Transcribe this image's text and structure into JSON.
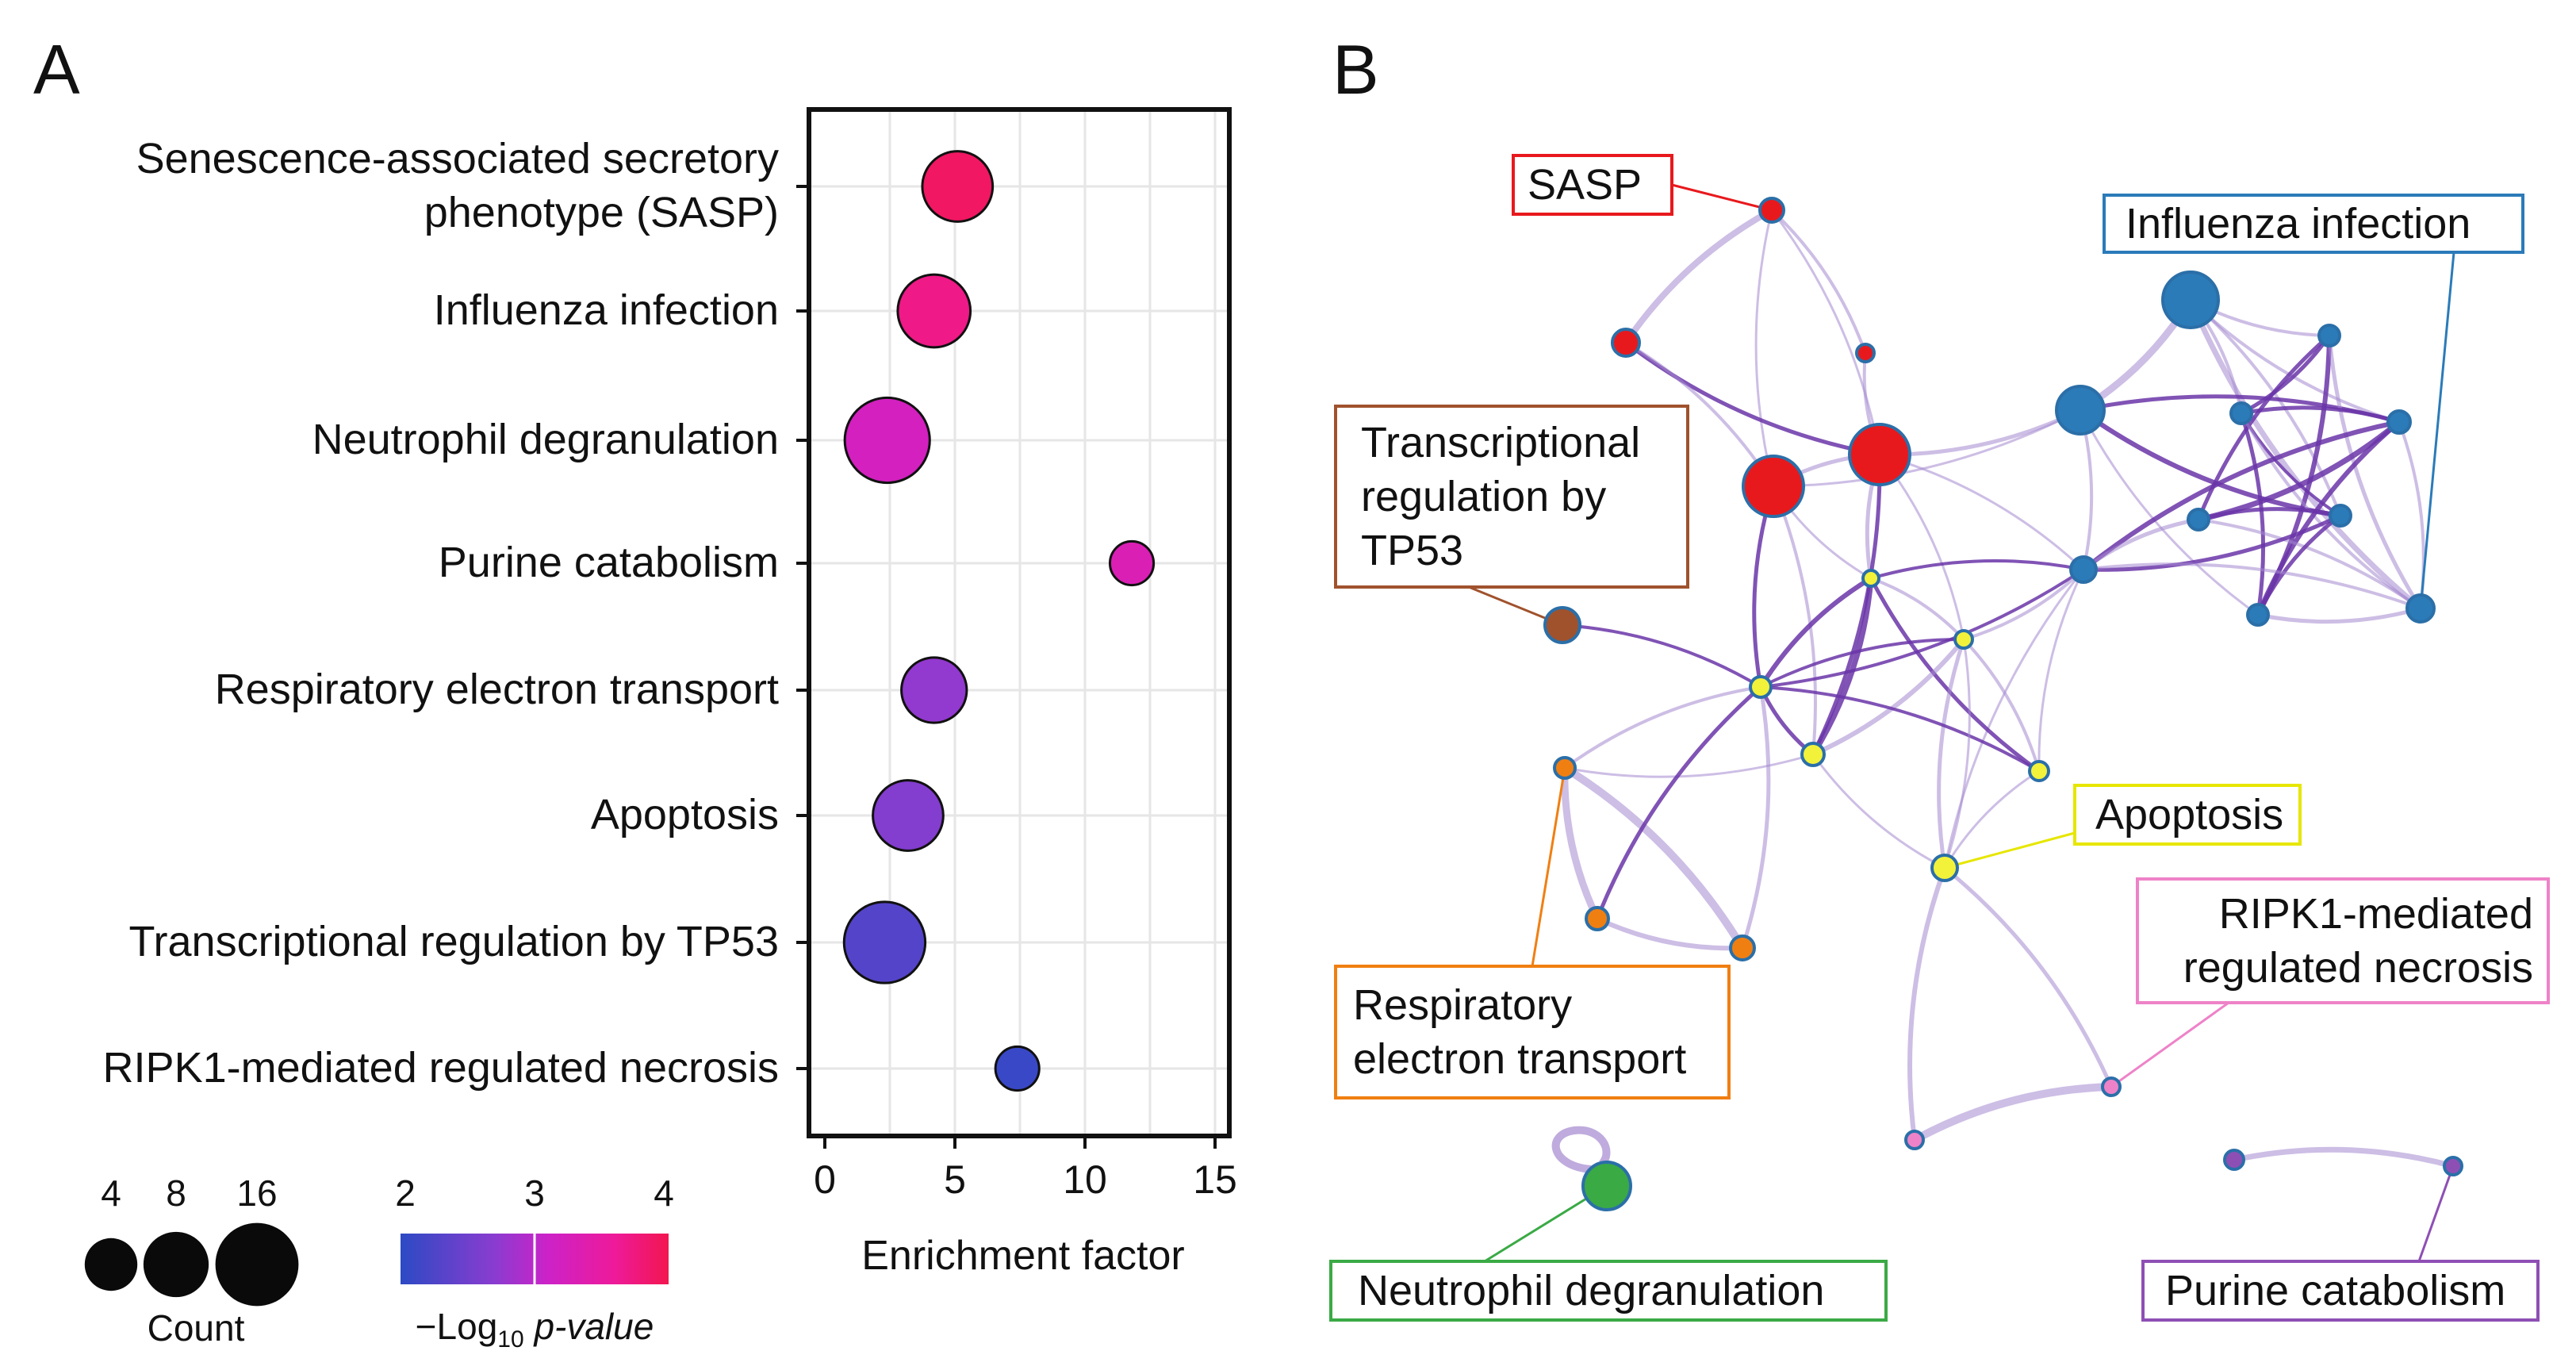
{
  "panel_a": {
    "label": "A",
    "size_legend": {
      "values": [
        4,
        8,
        16
      ],
      "title": "Count"
    },
    "color_legend": {
      "ticks": [
        "2",
        "3",
        "4"
      ],
      "title_prefix": "−Log",
      "title_sub": "10",
      "title_suffix": " p-value"
    }
  },
  "panel_b": {
    "label": "B",
    "clusters": [
      {
        "id": "sasp",
        "lines": [
          "SASP"
        ],
        "color": "#e8191d",
        "box_color": "#e8191d"
      },
      {
        "id": "influenza",
        "lines": [
          "Influenza infection"
        ],
        "color": "#2b7bb9",
        "box_color": "#2b7bb9"
      },
      {
        "id": "tp53",
        "lines": [
          "Transcriptional",
          "regulation by",
          "TP53"
        ],
        "color": "#a0522d",
        "box_color": "#a0522d"
      },
      {
        "id": "apoptosis",
        "lines": [
          "Apoptosis"
        ],
        "color": "#f2f23a",
        "box_color": "#e6e600"
      },
      {
        "id": "ripk1",
        "lines": [
          "RIPK1-mediated",
          "regulated necrosis"
        ],
        "color": "#ee82c8",
        "box_color": "#ee82c8"
      },
      {
        "id": "resp",
        "lines": [
          "Respiratory",
          "electron transport"
        ],
        "color": "#f07f12",
        "box_color": "#f07f12"
      },
      {
        "id": "neutro",
        "lines": [
          "Neutrophil degranulation"
        ],
        "color": "#3aaa45",
        "box_color": "#3aaa45"
      },
      {
        "id": "purine",
        "lines": [
          "Purine catabolism"
        ],
        "color": "#8e4fb5",
        "box_color": "#8e4fb5"
      }
    ]
  },
  "chart_data": {
    "type": "scatter",
    "xlabel": "Enrichment factor",
    "xlim": [
      0,
      15.5
    ],
    "xticks": [
      0,
      5,
      10,
      15
    ],
    "size_label": "Count",
    "color_label": "−Log10 p-value",
    "color_range": [
      2,
      4
    ],
    "points": [
      {
        "term": [
          "Senescence-associated secretory",
          "phenotype (SASP)"
        ],
        "enrichment": 5.1,
        "count": 10,
        "neglog10p": 3.9
      },
      {
        "term": [
          "Influenza infection"
        ],
        "enrichment": 4.2,
        "count": 11,
        "neglog10p": 3.7
      },
      {
        "term": [
          "Neutrophil degranulation"
        ],
        "enrichment": 2.4,
        "count": 17,
        "neglog10p": 3.2
      },
      {
        "term": [
          "Purine catabolism"
        ],
        "enrichment": 11.8,
        "count": 2,
        "neglog10p": 3.3
      },
      {
        "term": [
          "Respiratory electron transport"
        ],
        "enrichment": 4.2,
        "count": 8,
        "neglog10p": 2.75
      },
      {
        "term": [
          "Apoptosis"
        ],
        "enrichment": 3.2,
        "count": 10,
        "neglog10p": 2.65
      },
      {
        "term": [
          "Transcriptional regulation by TP53"
        ],
        "enrichment": 2.3,
        "count": 15,
        "neglog10p": 2.3
      },
      {
        "term": [
          "RIPK1-mediated regulated necrosis"
        ],
        "enrichment": 7.4,
        "count": 2,
        "neglog10p": 2.1
      }
    ]
  }
}
